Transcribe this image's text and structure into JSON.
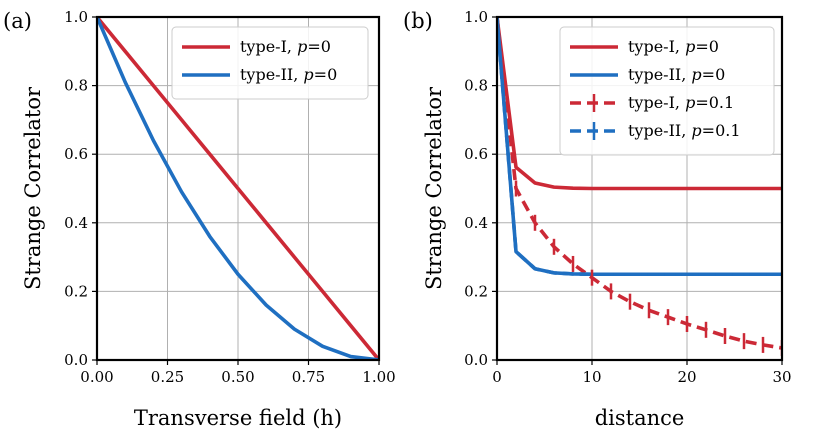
{
  "colors": {
    "type1": "#cc2936",
    "type2": "#1f6fc1",
    "grid": "#b0b0b0"
  },
  "chart_data": [
    {
      "panel": "(a)",
      "type": "line",
      "xlabel": "Transverse field (h)",
      "ylabel": "Strange Correlator",
      "xlim": [
        0,
        1
      ],
      "ylim": [
        0,
        1
      ],
      "xticks": [
        0,
        0.25,
        0.5,
        0.75,
        1
      ],
      "xtick_labels": [
        "0.00",
        "0.25",
        "0.50",
        "0.75",
        "1.00"
      ],
      "yticks": [
        0,
        0.2,
        0.4,
        0.6,
        0.8,
        1
      ],
      "ytick_labels": [
        "0.0",
        "0.2",
        "0.4",
        "0.6",
        "0.8",
        "1.0"
      ],
      "grid": true,
      "legend_position": "top-right",
      "series": [
        {
          "name": "type-I",
          "p_label": "p",
          "p_value": "=0",
          "color_key": "type1",
          "dashed": false,
          "x": [
            0,
            0.1,
            0.2,
            0.3,
            0.4,
            0.5,
            0.6,
            0.7,
            0.8,
            0.9,
            1.0
          ],
          "y": [
            1.0,
            0.9,
            0.8,
            0.7,
            0.6,
            0.5,
            0.4,
            0.3,
            0.2,
            0.1,
            0.0
          ]
        },
        {
          "name": "type-II",
          "p_label": "p",
          "p_value": "=0",
          "color_key": "type2",
          "dashed": false,
          "x": [
            0,
            0.1,
            0.2,
            0.3,
            0.4,
            0.5,
            0.6,
            0.7,
            0.8,
            0.9,
            1.0
          ],
          "y": [
            1.0,
            0.81,
            0.64,
            0.49,
            0.36,
            0.25,
            0.16,
            0.09,
            0.04,
            0.01,
            0.0
          ]
        }
      ]
    },
    {
      "panel": "(b)",
      "type": "line",
      "xlabel": "distance",
      "ylabel": "Strange Correlator",
      "xlim": [
        0,
        30
      ],
      "ylim": [
        0,
        1
      ],
      "xticks": [
        0,
        10,
        20,
        30
      ],
      "xtick_labels": [
        "0",
        "10",
        "20",
        "30"
      ],
      "yticks": [
        0,
        0.2,
        0.4,
        0.6,
        0.8,
        1
      ],
      "ytick_labels": [
        "0.0",
        "0.2",
        "0.4",
        "0.6",
        "0.8",
        "1.0"
      ],
      "grid": true,
      "legend_position": "top-right",
      "series": [
        {
          "name": "type-I",
          "p_label": "p",
          "p_value": "=0",
          "color_key": "type1",
          "dashed": false,
          "x": [
            0,
            2,
            4,
            6,
            8,
            10,
            12,
            14,
            16,
            18,
            20,
            22,
            24,
            26,
            28,
            30
          ],
          "y": [
            1.0,
            0.562,
            0.516,
            0.504,
            0.501,
            0.5,
            0.5,
            0.5,
            0.5,
            0.5,
            0.5,
            0.5,
            0.5,
            0.5,
            0.5,
            0.5
          ]
        },
        {
          "name": "type-II",
          "p_label": "p",
          "p_value": "=0",
          "color_key": "type2",
          "dashed": false,
          "x": [
            0,
            2,
            4,
            6,
            8,
            10,
            12,
            14,
            16,
            18,
            20,
            22,
            24,
            26,
            28,
            30
          ],
          "y": [
            1.0,
            0.316,
            0.266,
            0.254,
            0.251,
            0.25,
            0.25,
            0.25,
            0.25,
            0.25,
            0.25,
            0.25,
            0.25,
            0.25,
            0.25,
            0.25
          ]
        },
        {
          "name": "type-I",
          "p_label": "p",
          "p_value": "=0.1",
          "color_key": "type1",
          "dashed": true,
          "errorbars": true,
          "x": [
            0,
            2,
            4,
            6,
            8,
            10,
            12,
            14,
            16,
            18,
            20,
            22,
            24,
            26,
            28,
            30
          ],
          "y": [
            1.0,
            0.5,
            0.4,
            0.33,
            0.28,
            0.24,
            0.2,
            0.17,
            0.145,
            0.125,
            0.105,
            0.088,
            0.07,
            0.055,
            0.044,
            0.035
          ]
        },
        {
          "name": "type-II",
          "p_label": "p",
          "p_value": "=0.1",
          "color_key": "type2",
          "dashed": true,
          "errorbars": true,
          "x": [
            0,
            2,
            4,
            6,
            8,
            10,
            12,
            14,
            16,
            18,
            20,
            22,
            24,
            26,
            28,
            30
          ],
          "y": [
            1.0,
            0.316,
            0.266,
            0.254,
            0.251,
            0.25,
            0.25,
            0.25,
            0.25,
            0.25,
            0.25,
            0.25,
            0.25,
            0.25,
            0.25,
            0.25
          ]
        }
      ]
    }
  ]
}
